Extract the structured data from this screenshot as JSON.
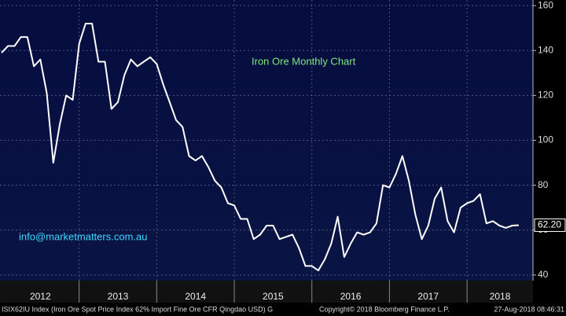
{
  "chart_data": {
    "type": "line",
    "title": "Iron Ore Monthly Chart",
    "annotation": "info@marketmatters.com.au",
    "footer_left": "ISIX62IU Index (Iron Ore Spot Price Index 62% Import Fine Ore CFR Qingdao USD) G",
    "footer_center": "Copyright© 2018 Bloomberg Finance L.P.",
    "footer_right": "27-Aug-2018 08:46:31",
    "x": [
      2012,
      2012.083,
      2012.167,
      2012.25,
      2012.333,
      2012.417,
      2012.5,
      2012.583,
      2012.667,
      2012.75,
      2012.833,
      2012.917,
      2013,
      2013.083,
      2013.167,
      2013.25,
      2013.333,
      2013.417,
      2013.5,
      2013.583,
      2013.667,
      2013.75,
      2013.833,
      2013.917,
      2014,
      2014.083,
      2014.167,
      2014.25,
      2014.333,
      2014.417,
      2014.5,
      2014.583,
      2014.667,
      2014.75,
      2014.833,
      2014.917,
      2015,
      2015.083,
      2015.167,
      2015.25,
      2015.333,
      2015.417,
      2015.5,
      2015.583,
      2015.667,
      2015.75,
      2015.833,
      2015.917,
      2016,
      2016.083,
      2016.167,
      2016.25,
      2016.333,
      2016.417,
      2016.5,
      2016.583,
      2016.667,
      2016.75,
      2016.833,
      2016.917,
      2017,
      2017.083,
      2017.167,
      2017.25,
      2017.333,
      2017.417,
      2017.5,
      2017.583,
      2017.667,
      2017.75,
      2017.833,
      2017.917,
      2018,
      2018.083,
      2018.167,
      2018.25,
      2018.333,
      2018.417,
      2018.5,
      2018.583,
      2018.667
    ],
    "values": [
      139,
      142,
      142,
      146,
      146,
      133,
      136,
      121,
      90,
      107,
      120,
      118,
      143,
      152,
      152,
      135,
      135,
      114,
      117,
      129,
      136,
      133,
      135,
      137,
      134,
      125,
      117,
      109,
      106,
      93,
      91,
      93,
      88,
      82,
      79,
      72,
      71,
      65,
      65,
      56,
      58,
      62,
      62,
      56,
      57,
      58,
      52,
      44,
      44,
      42,
      47,
      54,
      66,
      48,
      54,
      59,
      58,
      59,
      63,
      80,
      79,
      85,
      93,
      82,
      67,
      56,
      62,
      74,
      79,
      64,
      59,
      70,
      72,
      73,
      76,
      63,
      64,
      62,
      61,
      62,
      62.2
    ],
    "value_labels": [
      null,
      null,
      null,
      null,
      null,
      null,
      null,
      null,
      null,
      null,
      null,
      null,
      null,
      null,
      null,
      null,
      null,
      null,
      null,
      null,
      null,
      null,
      null,
      null,
      null,
      null,
      null,
      null,
      null,
      null,
      null,
      null,
      null,
      null,
      null,
      null,
      null,
      null,
      null,
      null,
      null,
      null,
      null,
      null,
      null,
      null,
      null,
      null,
      null,
      null,
      null,
      null,
      null,
      null,
      null,
      null,
      null,
      null,
      null,
      null,
      null,
      null,
      null,
      null,
      null,
      null,
      null,
      null,
      null,
      null,
      null,
      null,
      null,
      null,
      null,
      null,
      null,
      null,
      null,
      null,
      "62.20"
    ],
    "color": "#ffffff",
    "xlim": [
      2011.98,
      2018.85
    ],
    "xticks": [
      2012,
      2013,
      2014,
      2015,
      2016,
      2017,
      2018
    ],
    "ylim": [
      37.5,
      162.5
    ],
    "yticks": [
      40,
      60,
      80,
      100,
      120,
      140,
      160
    ],
    "grid": true
  }
}
